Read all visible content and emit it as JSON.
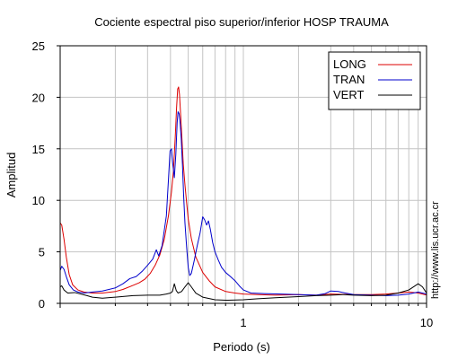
{
  "chart_data": {
    "type": "line",
    "title": "Cociente espectral piso superior/inferior  HOSP TRAUMA",
    "xlabel": "Periodo (s)",
    "ylabel": "Amplitud",
    "xscale": "log",
    "xlim": [
      0.1,
      10
    ],
    "ylim": [
      0,
      25
    ],
    "x_tick_labels": [
      {
        "value": 1,
        "label": "1"
      },
      {
        "value": 10,
        "label": "10"
      }
    ],
    "y_tick_labels": [
      {
        "value": 0,
        "label": "0"
      },
      {
        "value": 5,
        "label": "5"
      },
      {
        "value": 10,
        "label": "10"
      },
      {
        "value": 15,
        "label": "15"
      },
      {
        "value": 20,
        "label": "20"
      },
      {
        "value": 25,
        "label": "25"
      }
    ],
    "grid": true,
    "legend_position": "top-right",
    "credit": "http://www.lis.ucr.ac.cr",
    "series": [
      {
        "name": "LONG",
        "color": "#dd0000",
        "points": [
          [
            0.1,
            7.8
          ],
          [
            0.102,
            7.6
          ],
          [
            0.105,
            6.2
          ],
          [
            0.108,
            4.5
          ],
          [
            0.112,
            2.8
          ],
          [
            0.117,
            1.8
          ],
          [
            0.125,
            1.3
          ],
          [
            0.135,
            1.1
          ],
          [
            0.15,
            1.0
          ],
          [
            0.17,
            1.0
          ],
          [
            0.2,
            1.15
          ],
          [
            0.22,
            1.35
          ],
          [
            0.25,
            1.75
          ],
          [
            0.27,
            2.0
          ],
          [
            0.29,
            2.35
          ],
          [
            0.31,
            2.9
          ],
          [
            0.33,
            3.7
          ],
          [
            0.35,
            4.7
          ],
          [
            0.37,
            6.2
          ],
          [
            0.39,
            8.5
          ],
          [
            0.405,
            10.8
          ],
          [
            0.415,
            12.8
          ],
          [
            0.425,
            16.2
          ],
          [
            0.432,
            19.0
          ],
          [
            0.438,
            20.8
          ],
          [
            0.443,
            21.0
          ],
          [
            0.448,
            20.3
          ],
          [
            0.455,
            18.2
          ],
          [
            0.462,
            16.0
          ],
          [
            0.47,
            13.5
          ],
          [
            0.48,
            11.5
          ],
          [
            0.49,
            9.8
          ],
          [
            0.5,
            8.2
          ],
          [
            0.52,
            6.3
          ],
          [
            0.55,
            4.5
          ],
          [
            0.6,
            3.0
          ],
          [
            0.65,
            2.2
          ],
          [
            0.7,
            1.6
          ],
          [
            0.8,
            1.15
          ],
          [
            0.9,
            1.0
          ],
          [
            1.0,
            0.9
          ],
          [
            1.2,
            0.85
          ],
          [
            1.5,
            0.8
          ],
          [
            2.0,
            0.85
          ],
          [
            2.5,
            0.8
          ],
          [
            3.0,
            0.9
          ],
          [
            4.0,
            0.85
          ],
          [
            5.0,
            0.85
          ],
          [
            6.0,
            0.9
          ],
          [
            7.0,
            1.0
          ],
          [
            8.0,
            1.1
          ],
          [
            9.0,
            1.0
          ],
          [
            10.0,
            0.8
          ]
        ]
      },
      {
        "name": "TRAN",
        "color": "#0000cc",
        "points": [
          [
            0.1,
            3.2
          ],
          [
            0.102,
            3.6
          ],
          [
            0.105,
            3.3
          ],
          [
            0.108,
            2.6
          ],
          [
            0.112,
            1.8
          ],
          [
            0.118,
            1.3
          ],
          [
            0.125,
            1.1
          ],
          [
            0.135,
            1.0
          ],
          [
            0.15,
            1.1
          ],
          [
            0.17,
            1.2
          ],
          [
            0.2,
            1.5
          ],
          [
            0.22,
            1.9
          ],
          [
            0.24,
            2.4
          ],
          [
            0.26,
            2.6
          ],
          [
            0.28,
            3.1
          ],
          [
            0.3,
            3.7
          ],
          [
            0.32,
            4.3
          ],
          [
            0.335,
            5.2
          ],
          [
            0.345,
            4.6
          ],
          [
            0.36,
            5.6
          ],
          [
            0.38,
            8.5
          ],
          [
            0.39,
            12.0
          ],
          [
            0.398,
            14.8
          ],
          [
            0.405,
            15.0
          ],
          [
            0.412,
            13.5
          ],
          [
            0.42,
            12.2
          ],
          [
            0.428,
            14.5
          ],
          [
            0.435,
            17.5
          ],
          [
            0.44,
            18.6
          ],
          [
            0.446,
            18.4
          ],
          [
            0.452,
            17.4
          ],
          [
            0.458,
            16.0
          ],
          [
            0.465,
            13.5
          ],
          [
            0.472,
            10.5
          ],
          [
            0.48,
            7.8
          ],
          [
            0.49,
            5.5
          ],
          [
            0.5,
            3.5
          ],
          [
            0.51,
            2.7
          ],
          [
            0.52,
            2.9
          ],
          [
            0.54,
            4.2
          ],
          [
            0.56,
            5.6
          ],
          [
            0.58,
            6.8
          ],
          [
            0.6,
            8.4
          ],
          [
            0.615,
            8.1
          ],
          [
            0.63,
            7.6
          ],
          [
            0.645,
            8.0
          ],
          [
            0.66,
            7.2
          ],
          [
            0.68,
            5.9
          ],
          [
            0.7,
            5.0
          ],
          [
            0.73,
            4.2
          ],
          [
            0.76,
            3.5
          ],
          [
            0.8,
            3.0
          ],
          [
            0.85,
            2.6
          ],
          [
            0.9,
            2.2
          ],
          [
            0.95,
            1.7
          ],
          [
            1.0,
            1.3
          ],
          [
            1.1,
            1.0
          ],
          [
            1.3,
            0.95
          ],
          [
            1.6,
            0.9
          ],
          [
            2.0,
            0.85
          ],
          [
            2.5,
            0.8
          ],
          [
            2.8,
            0.95
          ],
          [
            3.0,
            1.2
          ],
          [
            3.3,
            1.15
          ],
          [
            3.6,
            1.0
          ],
          [
            4.0,
            0.85
          ],
          [
            5.0,
            0.8
          ],
          [
            6.0,
            0.75
          ],
          [
            7.0,
            0.8
          ],
          [
            8.0,
            0.9
          ],
          [
            9.0,
            1.1
          ],
          [
            10.0,
            0.9
          ]
        ]
      },
      {
        "name": "VERT",
        "color": "#000000",
        "points": [
          [
            0.1,
            1.6
          ],
          [
            0.102,
            1.7
          ],
          [
            0.105,
            1.3
          ],
          [
            0.11,
            1.0
          ],
          [
            0.12,
            1.05
          ],
          [
            0.13,
            0.9
          ],
          [
            0.14,
            0.75
          ],
          [
            0.15,
            0.6
          ],
          [
            0.17,
            0.5
          ],
          [
            0.2,
            0.6
          ],
          [
            0.25,
            0.75
          ],
          [
            0.3,
            0.8
          ],
          [
            0.35,
            0.8
          ],
          [
            0.38,
            0.9
          ],
          [
            0.4,
            1.0
          ],
          [
            0.41,
            1.15
          ],
          [
            0.42,
            1.9
          ],
          [
            0.43,
            1.25
          ],
          [
            0.44,
            1.0
          ],
          [
            0.46,
            1.15
          ],
          [
            0.48,
            1.6
          ],
          [
            0.5,
            2.0
          ],
          [
            0.52,
            1.6
          ],
          [
            0.55,
            1.0
          ],
          [
            0.6,
            0.6
          ],
          [
            0.7,
            0.35
          ],
          [
            0.8,
            0.3
          ],
          [
            1.0,
            0.35
          ],
          [
            1.2,
            0.45
          ],
          [
            1.5,
            0.55
          ],
          [
            2.0,
            0.65
          ],
          [
            2.5,
            0.75
          ],
          [
            3.0,
            0.8
          ],
          [
            3.5,
            0.85
          ],
          [
            4.0,
            0.8
          ],
          [
            5.0,
            0.75
          ],
          [
            6.0,
            0.8
          ],
          [
            7.0,
            1.0
          ],
          [
            8.0,
            1.3
          ],
          [
            9.0,
            1.9
          ],
          [
            9.5,
            1.6
          ],
          [
            10.0,
            1.0
          ]
        ]
      }
    ]
  }
}
